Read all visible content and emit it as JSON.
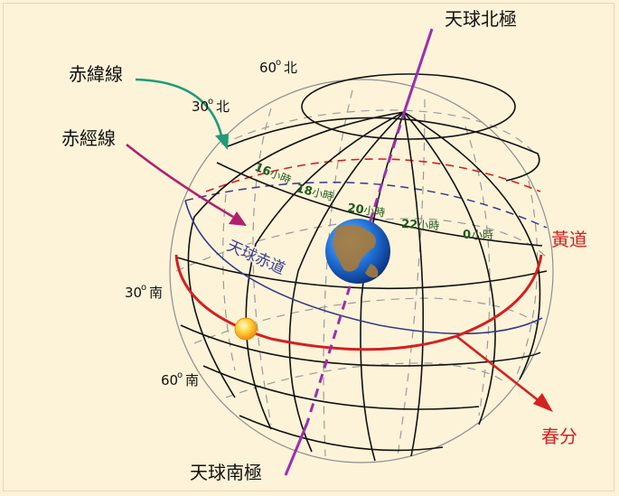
{
  "labels": {
    "north_pole": "天球北極",
    "south_pole": "天球南極",
    "parallel": "赤緯線",
    "meridian": "赤經線",
    "lat60n": "60",
    "lat60n_dir": "北",
    "lat30n": "30",
    "lat30n_dir": "北",
    "lat30s": "30",
    "lat30s_dir": "南",
    "lat60s": "60",
    "lat60s_dir": "南",
    "degree_mark": "o",
    "celestial_equator": "天球赤道",
    "ecliptic": "黃道",
    "vernal_equinox": "春分",
    "ra": [
      {
        "num": "16",
        "unit": "小時"
      },
      {
        "num": "18",
        "unit": "小時"
      },
      {
        "num": "20",
        "unit": "小時"
      },
      {
        "num": "22",
        "unit": "小時"
      },
      {
        "num": "0",
        "unit": "小時"
      }
    ]
  },
  "colors": {
    "background": "#fdf3d9",
    "axis": "#9b2fae",
    "parallel_arrow": "#1e9a7a",
    "meridian_arrow": "#b0206e",
    "ecliptic": "#d42020",
    "equator": "#333a8a",
    "equator_label": "#3a3f95",
    "grid": "#111111",
    "hidden": "#999999",
    "ra_label": "#1f5a1f",
    "sun": "#f6b21a"
  }
}
